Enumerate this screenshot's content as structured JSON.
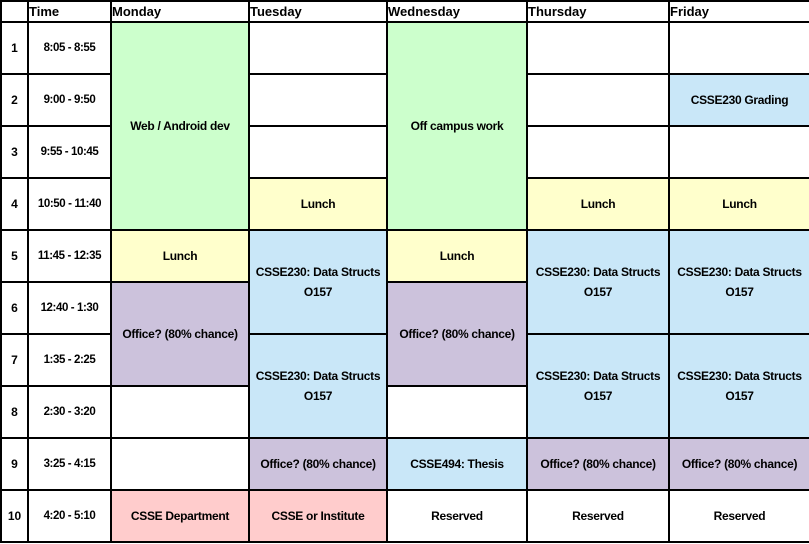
{
  "sheet": {
    "header": {
      "corner": "",
      "time_label": "Time",
      "days": [
        "Monday",
        "Tuesday",
        "Wednesday",
        "Thursday",
        "Friday"
      ]
    },
    "rows": [
      {
        "num": "1",
        "time": "8:05 - 8:55"
      },
      {
        "num": "2",
        "time": "9:00 - 9:50"
      },
      {
        "num": "3",
        "time": "9:55 - 10:45"
      },
      {
        "num": "4",
        "time": "10:50 - 11:40"
      },
      {
        "num": "5",
        "time": "11:45 - 12:35"
      },
      {
        "num": "6",
        "time": "12:40 - 1:30"
      },
      {
        "num": "7",
        "time": "1:35 - 2:25"
      },
      {
        "num": "8",
        "time": "2:30 - 3:20"
      },
      {
        "num": "9",
        "time": "3:25 - 4:15"
      },
      {
        "num": "10",
        "time": "4:20 - 5:10"
      }
    ],
    "days": [
      {
        "name": "Monday",
        "blocks": [
          {
            "start": 1,
            "span": 4,
            "color": "green",
            "lines": [
              "Web / Android dev"
            ]
          },
          {
            "start": 5,
            "span": 1,
            "color": "yellow",
            "lines": [
              "Lunch"
            ]
          },
          {
            "start": 6,
            "span": 2,
            "color": "purple",
            "lines": [
              "Office? (80% chance)"
            ]
          },
          {
            "start": 8,
            "span": 1,
            "color": "white",
            "lines": []
          },
          {
            "start": 9,
            "span": 1,
            "color": "white",
            "lines": []
          },
          {
            "start": 10,
            "span": 1,
            "color": "pink",
            "lines": [
              "CSSE Department"
            ]
          }
        ]
      },
      {
        "name": "Tuesday",
        "blocks": [
          {
            "start": 1,
            "span": 1,
            "color": "white",
            "lines": []
          },
          {
            "start": 2,
            "span": 1,
            "color": "white",
            "lines": []
          },
          {
            "start": 3,
            "span": 1,
            "color": "white",
            "lines": []
          },
          {
            "start": 4,
            "span": 1,
            "color": "yellow",
            "lines": [
              "Lunch"
            ]
          },
          {
            "start": 5,
            "span": 2,
            "color": "blue",
            "lines": [
              "CSSE230: Data Structs",
              "O157"
            ]
          },
          {
            "start": 7,
            "span": 2,
            "color": "blue",
            "lines": [
              "CSSE230: Data Structs",
              "O157"
            ]
          },
          {
            "start": 9,
            "span": 1,
            "color": "purple",
            "lines": [
              "Office? (80% chance)"
            ]
          },
          {
            "start": 10,
            "span": 1,
            "color": "pink",
            "lines": [
              "CSSE or Institute"
            ]
          }
        ]
      },
      {
        "name": "Wednesday",
        "blocks": [
          {
            "start": 1,
            "span": 4,
            "color": "green",
            "lines": [
              "Off campus work"
            ]
          },
          {
            "start": 5,
            "span": 1,
            "color": "yellow",
            "lines": [
              "Lunch"
            ]
          },
          {
            "start": 6,
            "span": 2,
            "color": "purple",
            "lines": [
              "Office? (80% chance)"
            ]
          },
          {
            "start": 8,
            "span": 1,
            "color": "white",
            "lines": []
          },
          {
            "start": 9,
            "span": 1,
            "color": "blue",
            "lines": [
              "CSSE494: Thesis"
            ]
          },
          {
            "start": 10,
            "span": 1,
            "color": "white",
            "lines": [
              "Reserved"
            ]
          }
        ]
      },
      {
        "name": "Thursday",
        "blocks": [
          {
            "start": 1,
            "span": 1,
            "color": "white",
            "lines": []
          },
          {
            "start": 2,
            "span": 1,
            "color": "white",
            "lines": []
          },
          {
            "start": 3,
            "span": 1,
            "color": "white",
            "lines": []
          },
          {
            "start": 4,
            "span": 1,
            "color": "yellow",
            "lines": [
              "Lunch"
            ]
          },
          {
            "start": 5,
            "span": 2,
            "color": "blue",
            "lines": [
              "CSSE230: Data Structs",
              "O157"
            ]
          },
          {
            "start": 7,
            "span": 2,
            "color": "blue",
            "lines": [
              "CSSE230: Data Structs",
              "O157"
            ]
          },
          {
            "start": 9,
            "span": 1,
            "color": "purple",
            "lines": [
              "Office? (80% chance)"
            ]
          },
          {
            "start": 10,
            "span": 1,
            "color": "white",
            "lines": [
              "Reserved"
            ]
          }
        ]
      },
      {
        "name": "Friday",
        "blocks": [
          {
            "start": 1,
            "span": 1,
            "color": "white",
            "lines": []
          },
          {
            "start": 2,
            "span": 1,
            "color": "blue",
            "lines": [
              "CSSE230 Grading"
            ]
          },
          {
            "start": 3,
            "span": 1,
            "color": "white",
            "lines": []
          },
          {
            "start": 4,
            "span": 1,
            "color": "yellow",
            "lines": [
              "Lunch"
            ]
          },
          {
            "start": 5,
            "span": 2,
            "color": "blue",
            "lines": [
              "CSSE230: Data Structs",
              "O157"
            ]
          },
          {
            "start": 7,
            "span": 2,
            "color": "blue",
            "lines": [
              "CSSE230: Data Structs",
              "O157"
            ]
          },
          {
            "start": 9,
            "span": 1,
            "color": "purple",
            "lines": [
              "Office? (80% chance)"
            ]
          },
          {
            "start": 10,
            "span": 1,
            "color": "white",
            "lines": [
              "Reserved"
            ]
          }
        ]
      }
    ],
    "colors": {
      "green": "#CCFFCC",
      "yellow": "#FFFFCC",
      "blue": "#C9E7F8",
      "purple": "#CCC2DC",
      "pink": "#FFCCCC",
      "white": "#FFFFFF",
      "grid": "#000000",
      "text": "#000000"
    }
  }
}
